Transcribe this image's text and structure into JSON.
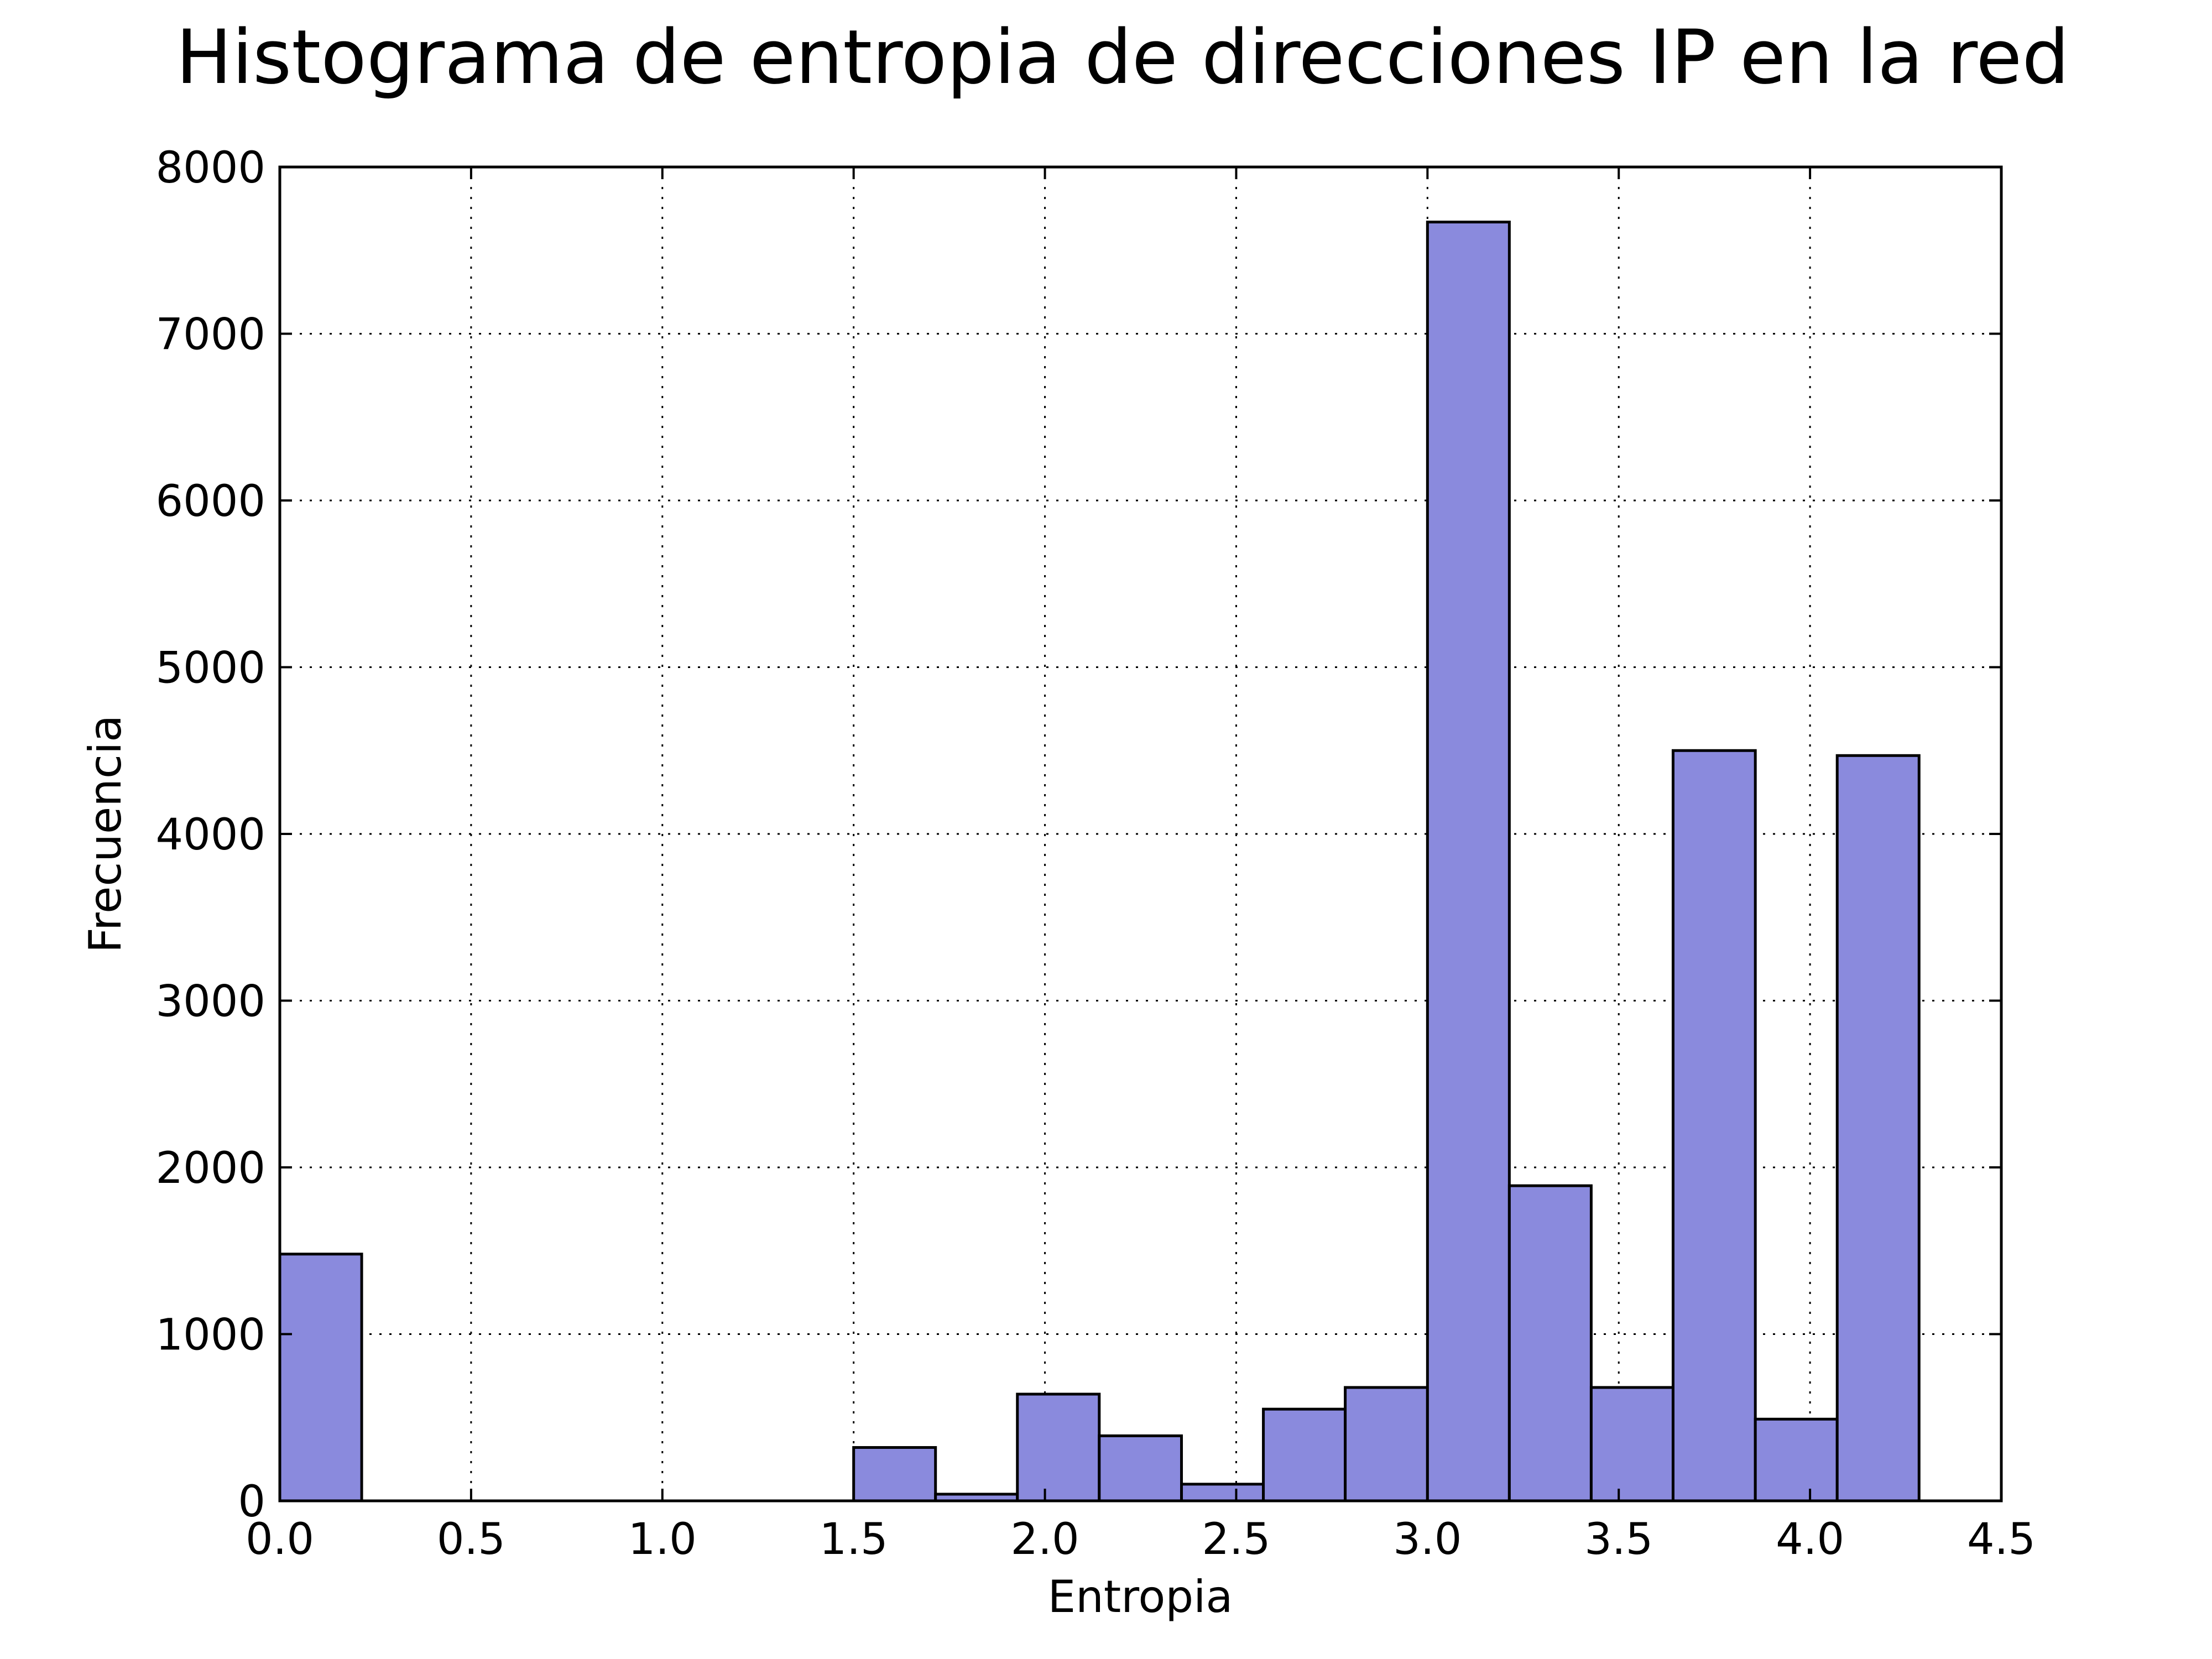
{
  "chart_data": {
    "type": "bar",
    "title": "Histograma de entropia de direcciones IP en la red",
    "xlabel": "Entropia",
    "ylabel": "Frecuencia",
    "xlim": [
      0,
      4.5
    ],
    "ylim": [
      0,
      8000
    ],
    "xticks": [
      "0.0",
      "0.5",
      "1.0",
      "1.5",
      "2.0",
      "2.5",
      "3.0",
      "3.5",
      "4.0",
      "4.5"
    ],
    "yticks": [
      "0",
      "1000",
      "2000",
      "3000",
      "4000",
      "5000",
      "6000",
      "7000",
      "8000"
    ],
    "grid": true,
    "bar_color": "#8a8add",
    "bins": [
      {
        "x0": 0.0,
        "x1": 0.214,
        "value": 1480
      },
      {
        "x0": 0.214,
        "x1": 0.428,
        "value": 0
      },
      {
        "x0": 0.428,
        "x1": 0.642,
        "value": 0
      },
      {
        "x0": 0.642,
        "x1": 0.857,
        "value": 0
      },
      {
        "x0": 0.857,
        "x1": 1.071,
        "value": 0
      },
      {
        "x0": 1.071,
        "x1": 1.285,
        "value": 0
      },
      {
        "x0": 1.285,
        "x1": 1.5,
        "value": 0
      },
      {
        "x0": 1.5,
        "x1": 1.714,
        "value": 320
      },
      {
        "x0": 1.714,
        "x1": 1.928,
        "value": 40
      },
      {
        "x0": 1.928,
        "x1": 2.142,
        "value": 640
      },
      {
        "x0": 2.142,
        "x1": 2.357,
        "value": 390
      },
      {
        "x0": 2.357,
        "x1": 2.571,
        "value": 100
      },
      {
        "x0": 2.571,
        "x1": 2.785,
        "value": 550
      },
      {
        "x0": 2.785,
        "x1": 3.0,
        "value": 680
      },
      {
        "x0": 3.0,
        "x1": 3.214,
        "value": 7670
      },
      {
        "x0": 3.214,
        "x1": 3.428,
        "value": 1890
      },
      {
        "x0": 3.428,
        "x1": 3.642,
        "value": 680
      },
      {
        "x0": 3.642,
        "x1": 3.857,
        "value": 4500
      },
      {
        "x0": 3.857,
        "x1": 4.071,
        "value": 490
      },
      {
        "x0": 4.071,
        "x1": 4.285,
        "value": 4470
      }
    ]
  }
}
